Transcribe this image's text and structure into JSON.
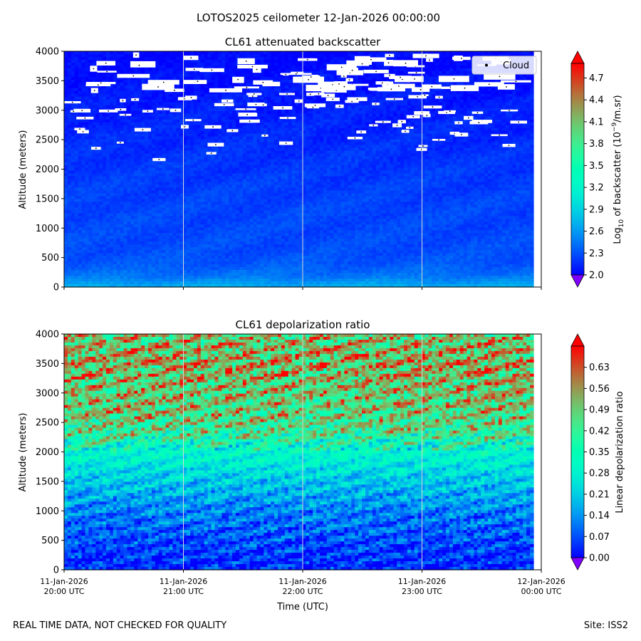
{
  "figure": {
    "suptitle": "LOTOS2025 ceilometer 12-Jan-2026 00:00:00",
    "footer_left": "REAL TIME DATA, NOT CHECKED FOR QUALITY",
    "footer_right": "Site: ISS2"
  },
  "chart_data": [
    {
      "type": "heatmap",
      "title": "CL61 attenuated backscatter",
      "ylabel": "Altitude (meters)",
      "xlabel": "",
      "ylim": [
        0,
        4000
      ],
      "yticks": [
        "0",
        "500",
        "1000",
        "1500",
        "2000",
        "2500",
        "3000",
        "3500",
        "4000"
      ],
      "ytick_values": [
        0,
        500,
        1000,
        1500,
        2000,
        2500,
        3000,
        3500,
        4000
      ],
      "xlim_hours": [
        20,
        24
      ],
      "xtick_hours": [
        20,
        21,
        22,
        23,
        24
      ],
      "xticks_shown": false,
      "legend": {
        "label": "Cloud",
        "placement": "top-right"
      },
      "colorbar": {
        "label_prefix": "Log",
        "label_sub": "10",
        "label_mid": " of backscatter (10",
        "label_sup": "−9",
        "label_suffix": "/m.sr)",
        "range": [
          2.0,
          4.9
        ],
        "ticks": [
          "2.0",
          "2.3",
          "2.6",
          "2.9",
          "3.2",
          "3.5",
          "3.8",
          "4.1",
          "4.4",
          "4.7"
        ],
        "tick_values": [
          2.0,
          2.3,
          2.6,
          2.9,
          3.2,
          3.5,
          3.8,
          4.1,
          4.4,
          4.7
        ],
        "colormap": "rainbow",
        "extend": "both"
      },
      "profile": {
        "altitude": [
          0,
          100,
          200,
          400,
          600,
          1000,
          1500,
          2000,
          2500,
          3000,
          3500,
          4000
        ],
        "typical_value": [
          2.7,
          2.55,
          2.42,
          2.32,
          2.28,
          2.26,
          2.24,
          2.2,
          2.15,
          2.1,
          2.06,
          2.02
        ]
      },
      "cloud_band_altitude": [
        2000,
        4000
      ]
    },
    {
      "type": "heatmap",
      "title": "CL61 depolarization ratio",
      "ylabel": "Altitude (meters)",
      "xlabel": "Time (UTC)",
      "ylim": [
        0,
        4000
      ],
      "yticks": [
        "0",
        "500",
        "1000",
        "1500",
        "2000",
        "2500",
        "3000",
        "3500",
        "4000"
      ],
      "ytick_values": [
        0,
        500,
        1000,
        1500,
        2000,
        2500,
        3000,
        3500,
        4000
      ],
      "xlim_hours": [
        20,
        24
      ],
      "xtick_hours": [
        20,
        21,
        22,
        23,
        24
      ],
      "xticks": [
        {
          "date": "11-Jan-2026",
          "time": "20:00 UTC"
        },
        {
          "date": "11-Jan-2026",
          "time": "21:00 UTC"
        },
        {
          "date": "11-Jan-2026",
          "time": "22:00 UTC"
        },
        {
          "date": "11-Jan-2026",
          "time": "23:00 UTC"
        },
        {
          "date": "12-Jan-2026",
          "time": "00:00 UTC"
        }
      ],
      "colorbar": {
        "label": "Linear depolarization ratio",
        "range": [
          0.0,
          0.7
        ],
        "ticks": [
          "0.00",
          "0.07",
          "0.14",
          "0.21",
          "0.28",
          "0.35",
          "0.42",
          "0.49",
          "0.56",
          "0.63"
        ],
        "tick_values": [
          0.0,
          0.07,
          0.14,
          0.21,
          0.28,
          0.35,
          0.42,
          0.49,
          0.56,
          0.63
        ],
        "colormap": "rainbow",
        "extend": "both"
      },
      "profile": {
        "altitude": [
          0,
          300,
          600,
          1000,
          1300,
          1600,
          2000,
          2300,
          2600,
          3000,
          3500,
          4000
        ],
        "typical_value": [
          0.03,
          0.05,
          0.08,
          0.12,
          0.17,
          0.22,
          0.3,
          0.42,
          0.48,
          0.5,
          0.54,
          0.5
        ]
      }
    }
  ]
}
